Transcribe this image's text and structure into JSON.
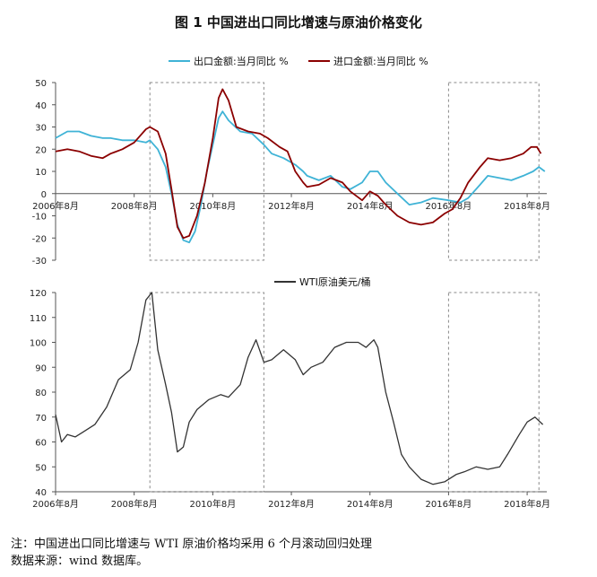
{
  "title": "图 1 中国进出口同比增速与原油价格变化",
  "note_line1": "注：中国进出口同比增速与 WTI 原油价格均采用 6 个月滚动回归处理",
  "note_line2": "数据来源：wind 数据库。",
  "chart_data": [
    {
      "type": "line",
      "x_ticks": [
        "2006年8月",
        "2008年8月",
        "2010年8月",
        "2012年8月",
        "2014年8月",
        "2016年8月",
        "2018年8月"
      ],
      "ylim": [
        -30,
        50
      ],
      "y_ticks": [
        -30,
        -20,
        -10,
        0,
        10,
        20,
        30,
        40,
        50
      ],
      "legend_position": "top",
      "series": [
        {
          "name": "出口金额:当月同比 %",
          "color": "#3fb3d6",
          "points": [
            [
              2006.6,
              25
            ],
            [
              2006.9,
              28
            ],
            [
              2007.2,
              28
            ],
            [
              2007.5,
              26
            ],
            [
              2007.8,
              25
            ],
            [
              2008.0,
              25
            ],
            [
              2008.3,
              24
            ],
            [
              2008.6,
              24
            ],
            [
              2008.9,
              23
            ],
            [
              2009.0,
              24
            ],
            [
              2009.2,
              20
            ],
            [
              2009.4,
              12
            ],
            [
              2009.55,
              0
            ],
            [
              2009.7,
              -14
            ],
            [
              2009.85,
              -21
            ],
            [
              2010.0,
              -22
            ],
            [
              2010.15,
              -17
            ],
            [
              2010.3,
              -5
            ],
            [
              2010.45,
              10
            ],
            [
              2010.6,
              22
            ],
            [
              2010.75,
              34
            ],
            [
              2010.85,
              37
            ],
            [
              2011.0,
              33
            ],
            [
              2011.3,
              28
            ],
            [
              2011.6,
              27
            ],
            [
              2011.9,
              22
            ],
            [
              2012.1,
              18
            ],
            [
              2012.4,
              16
            ],
            [
              2012.7,
              13
            ],
            [
              2012.9,
              10
            ],
            [
              2013.0,
              8
            ],
            [
              2013.3,
              6
            ],
            [
              2013.6,
              8
            ],
            [
              2013.9,
              3
            ],
            [
              2014.1,
              2
            ],
            [
              2014.4,
              5
            ],
            [
              2014.6,
              10
            ],
            [
              2014.8,
              10
            ],
            [
              2015.0,
              5
            ],
            [
              2015.3,
              0
            ],
            [
              2015.6,
              -5
            ],
            [
              2015.9,
              -4
            ],
            [
              2016.2,
              -2
            ],
            [
              2016.6,
              -3
            ],
            [
              2016.9,
              -4
            ],
            [
              2017.1,
              -2
            ],
            [
              2017.4,
              4
            ],
            [
              2017.6,
              8
            ],
            [
              2017.9,
              7
            ],
            [
              2018.2,
              6
            ],
            [
              2018.5,
              8
            ],
            [
              2018.75,
              10
            ],
            [
              2018.9,
              12
            ],
            [
              2019.05,
              10
            ]
          ]
        },
        {
          "name": "进口金额:当月同比 %",
          "color": "#8b0000",
          "points": [
            [
              2006.6,
              19
            ],
            [
              2006.9,
              20
            ],
            [
              2007.2,
              19
            ],
            [
              2007.5,
              17
            ],
            [
              2007.8,
              16
            ],
            [
              2008.0,
              18
            ],
            [
              2008.3,
              20
            ],
            [
              2008.6,
              23
            ],
            [
              2008.9,
              29
            ],
            [
              2009.0,
              30
            ],
            [
              2009.2,
              28
            ],
            [
              2009.4,
              18
            ],
            [
              2009.55,
              2
            ],
            [
              2009.7,
              -15
            ],
            [
              2009.85,
              -20
            ],
            [
              2010.0,
              -19
            ],
            [
              2010.2,
              -10
            ],
            [
              2010.4,
              5
            ],
            [
              2010.6,
              25
            ],
            [
              2010.75,
              43
            ],
            [
              2010.85,
              47
            ],
            [
              2011.0,
              42
            ],
            [
              2011.2,
              30
            ],
            [
              2011.5,
              28
            ],
            [
              2011.8,
              27
            ],
            [
              2012.0,
              25
            ],
            [
              2012.3,
              21
            ],
            [
              2012.5,
              19
            ],
            [
              2012.7,
              10
            ],
            [
              2012.9,
              5
            ],
            [
              2013.0,
              3
            ],
            [
              2013.3,
              4
            ],
            [
              2013.6,
              7
            ],
            [
              2013.9,
              5
            ],
            [
              2014.1,
              1
            ],
            [
              2014.4,
              -3
            ],
            [
              2014.6,
              1
            ],
            [
              2014.8,
              -1
            ],
            [
              2015.0,
              -5
            ],
            [
              2015.3,
              -10
            ],
            [
              2015.6,
              -13
            ],
            [
              2015.9,
              -14
            ],
            [
              2016.2,
              -13
            ],
            [
              2016.5,
              -9
            ],
            [
              2016.7,
              -7
            ],
            [
              2016.9,
              -2
            ],
            [
              2017.1,
              5
            ],
            [
              2017.4,
              12
            ],
            [
              2017.6,
              16
            ],
            [
              2017.9,
              15
            ],
            [
              2018.2,
              16
            ],
            [
              2018.5,
              18
            ],
            [
              2018.7,
              21
            ],
            [
              2018.85,
              21
            ],
            [
              2018.95,
              18
            ]
          ]
        }
      ]
    },
    {
      "type": "line",
      "x_ticks": [
        "2006年8月",
        "2008年8月",
        "2010年8月",
        "2012年8月",
        "2014年8月",
        "2016年8月",
        "2018年8月"
      ],
      "ylim": [
        40,
        120
      ],
      "y_ticks": [
        40,
        50,
        60,
        70,
        80,
        90,
        100,
        110,
        120
      ],
      "legend_position": "top",
      "series": [
        {
          "name": "WTI原油美元/桶",
          "color": "#333333",
          "points": [
            [
              2006.6,
              71
            ],
            [
              2006.75,
              60
            ],
            [
              2006.9,
              63
            ],
            [
              2007.1,
              62
            ],
            [
              2007.3,
              64
            ],
            [
              2007.6,
              67
            ],
            [
              2007.9,
              74
            ],
            [
              2008.2,
              85
            ],
            [
              2008.5,
              89
            ],
            [
              2008.7,
              100
            ],
            [
              2008.9,
              117
            ],
            [
              2009.05,
              120
            ],
            [
              2009.2,
              97
            ],
            [
              2009.4,
              83
            ],
            [
              2009.55,
              72
            ],
            [
              2009.7,
              56
            ],
            [
              2009.85,
              58
            ],
            [
              2010.0,
              68
            ],
            [
              2010.2,
              73
            ],
            [
              2010.5,
              77
            ],
            [
              2010.8,
              79
            ],
            [
              2011.0,
              78
            ],
            [
              2011.3,
              83
            ],
            [
              2011.5,
              94
            ],
            [
              2011.7,
              101
            ],
            [
              2011.9,
              92
            ],
            [
              2012.1,
              93
            ],
            [
              2012.4,
              97
            ],
            [
              2012.7,
              93
            ],
            [
              2012.9,
              87
            ],
            [
              2013.1,
              90
            ],
            [
              2013.4,
              92
            ],
            [
              2013.7,
              98
            ],
            [
              2014.0,
              100
            ],
            [
              2014.3,
              100
            ],
            [
              2014.5,
              98
            ],
            [
              2014.7,
              101
            ],
            [
              2014.8,
              98
            ],
            [
              2015.0,
              80
            ],
            [
              2015.2,
              68
            ],
            [
              2015.4,
              55
            ],
            [
              2015.6,
              50
            ],
            [
              2015.9,
              45
            ],
            [
              2016.2,
              43
            ],
            [
              2016.5,
              44
            ],
            [
              2016.8,
              47
            ],
            [
              2017.0,
              48
            ],
            [
              2017.3,
              50
            ],
            [
              2017.6,
              49
            ],
            [
              2017.9,
              50
            ],
            [
              2018.1,
              55
            ],
            [
              2018.4,
              63
            ],
            [
              2018.6,
              68
            ],
            [
              2018.8,
              70
            ],
            [
              2019.0,
              67
            ]
          ]
        }
      ]
    }
  ]
}
